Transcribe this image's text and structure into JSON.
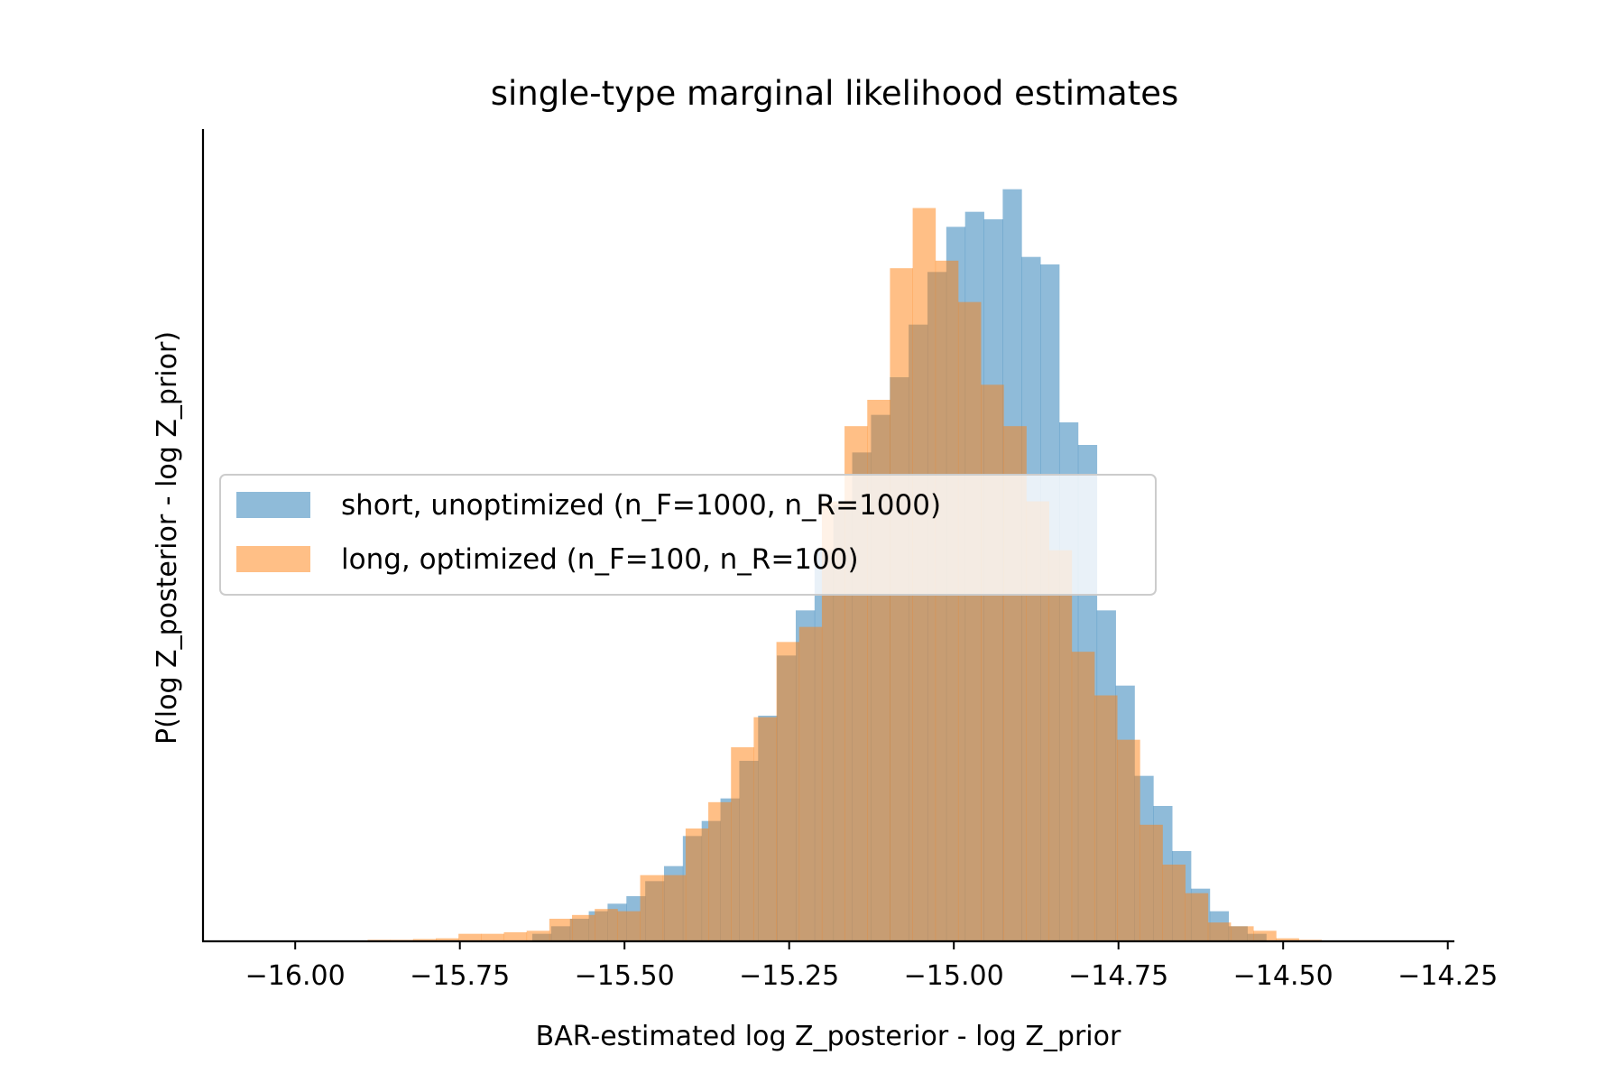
{
  "chart_data": {
    "type": "bar",
    "subtype": "overlapping-histogram",
    "title": "single-type marginal likelihood estimates",
    "xlabel": "BAR-estimated log Z_posterior - log Z_prior",
    "ylabel": "P(log Z_posterior - log Z_prior)",
    "xlim": [
      -16.14,
      -14.24
    ],
    "ylim": [
      0,
      1.08
    ],
    "xticks": [
      -16.0,
      -15.75,
      -15.5,
      -15.25,
      -15.0,
      -14.75,
      -14.5,
      -14.25
    ],
    "xtick_labels": [
      "−16.00",
      "−15.75",
      "−15.50",
      "−15.25",
      "−15.00",
      "−14.75",
      "−14.50",
      "−14.25"
    ],
    "yticks_shown": false,
    "grid": false,
    "legend_position": "center-left",
    "series": [
      {
        "name": "short, unoptimized (n_F=1000, n_R=1000)",
        "color": "#1f77b4",
        "opacity": 0.5,
        "bin_start": -15.64,
        "bin_width": 0.02857,
        "values": [
          0.01,
          0.02,
          0.03,
          0.04,
          0.05,
          0.06,
          0.08,
          0.1,
          0.14,
          0.16,
          0.19,
          0.24,
          0.3,
          0.38,
          0.44,
          0.52,
          0.58,
          0.65,
          0.7,
          0.75,
          0.82,
          0.89,
          0.95,
          0.97,
          0.96,
          1.0,
          0.91,
          0.9,
          0.69,
          0.66,
          0.44,
          0.34,
          0.22,
          0.18,
          0.12,
          0.07,
          0.04,
          0.02,
          0.01
        ]
      },
      {
        "name": "long, optimized (n_F=100, n_R=100)",
        "color": "#ff7f0e",
        "opacity": 0.5,
        "bin_start": -15.89,
        "bin_width": 0.03448,
        "values": [
          0.002,
          0.002,
          0.003,
          0.004,
          0.01,
          0.01,
          0.012,
          0.014,
          0.03,
          0.035,
          0.043,
          0.04,
          0.088,
          0.088,
          0.15,
          0.185,
          0.258,
          0.298,
          0.398,
          0.418,
          0.585,
          0.685,
          0.72,
          0.895,
          0.975,
          0.905,
          0.85,
          0.74,
          0.685,
          0.585,
          0.52,
          0.385,
          0.327,
          0.268,
          0.155,
          0.102,
          0.064,
          0.025,
          0.02,
          0.014,
          0.004,
          0.002
        ]
      }
    ]
  }
}
